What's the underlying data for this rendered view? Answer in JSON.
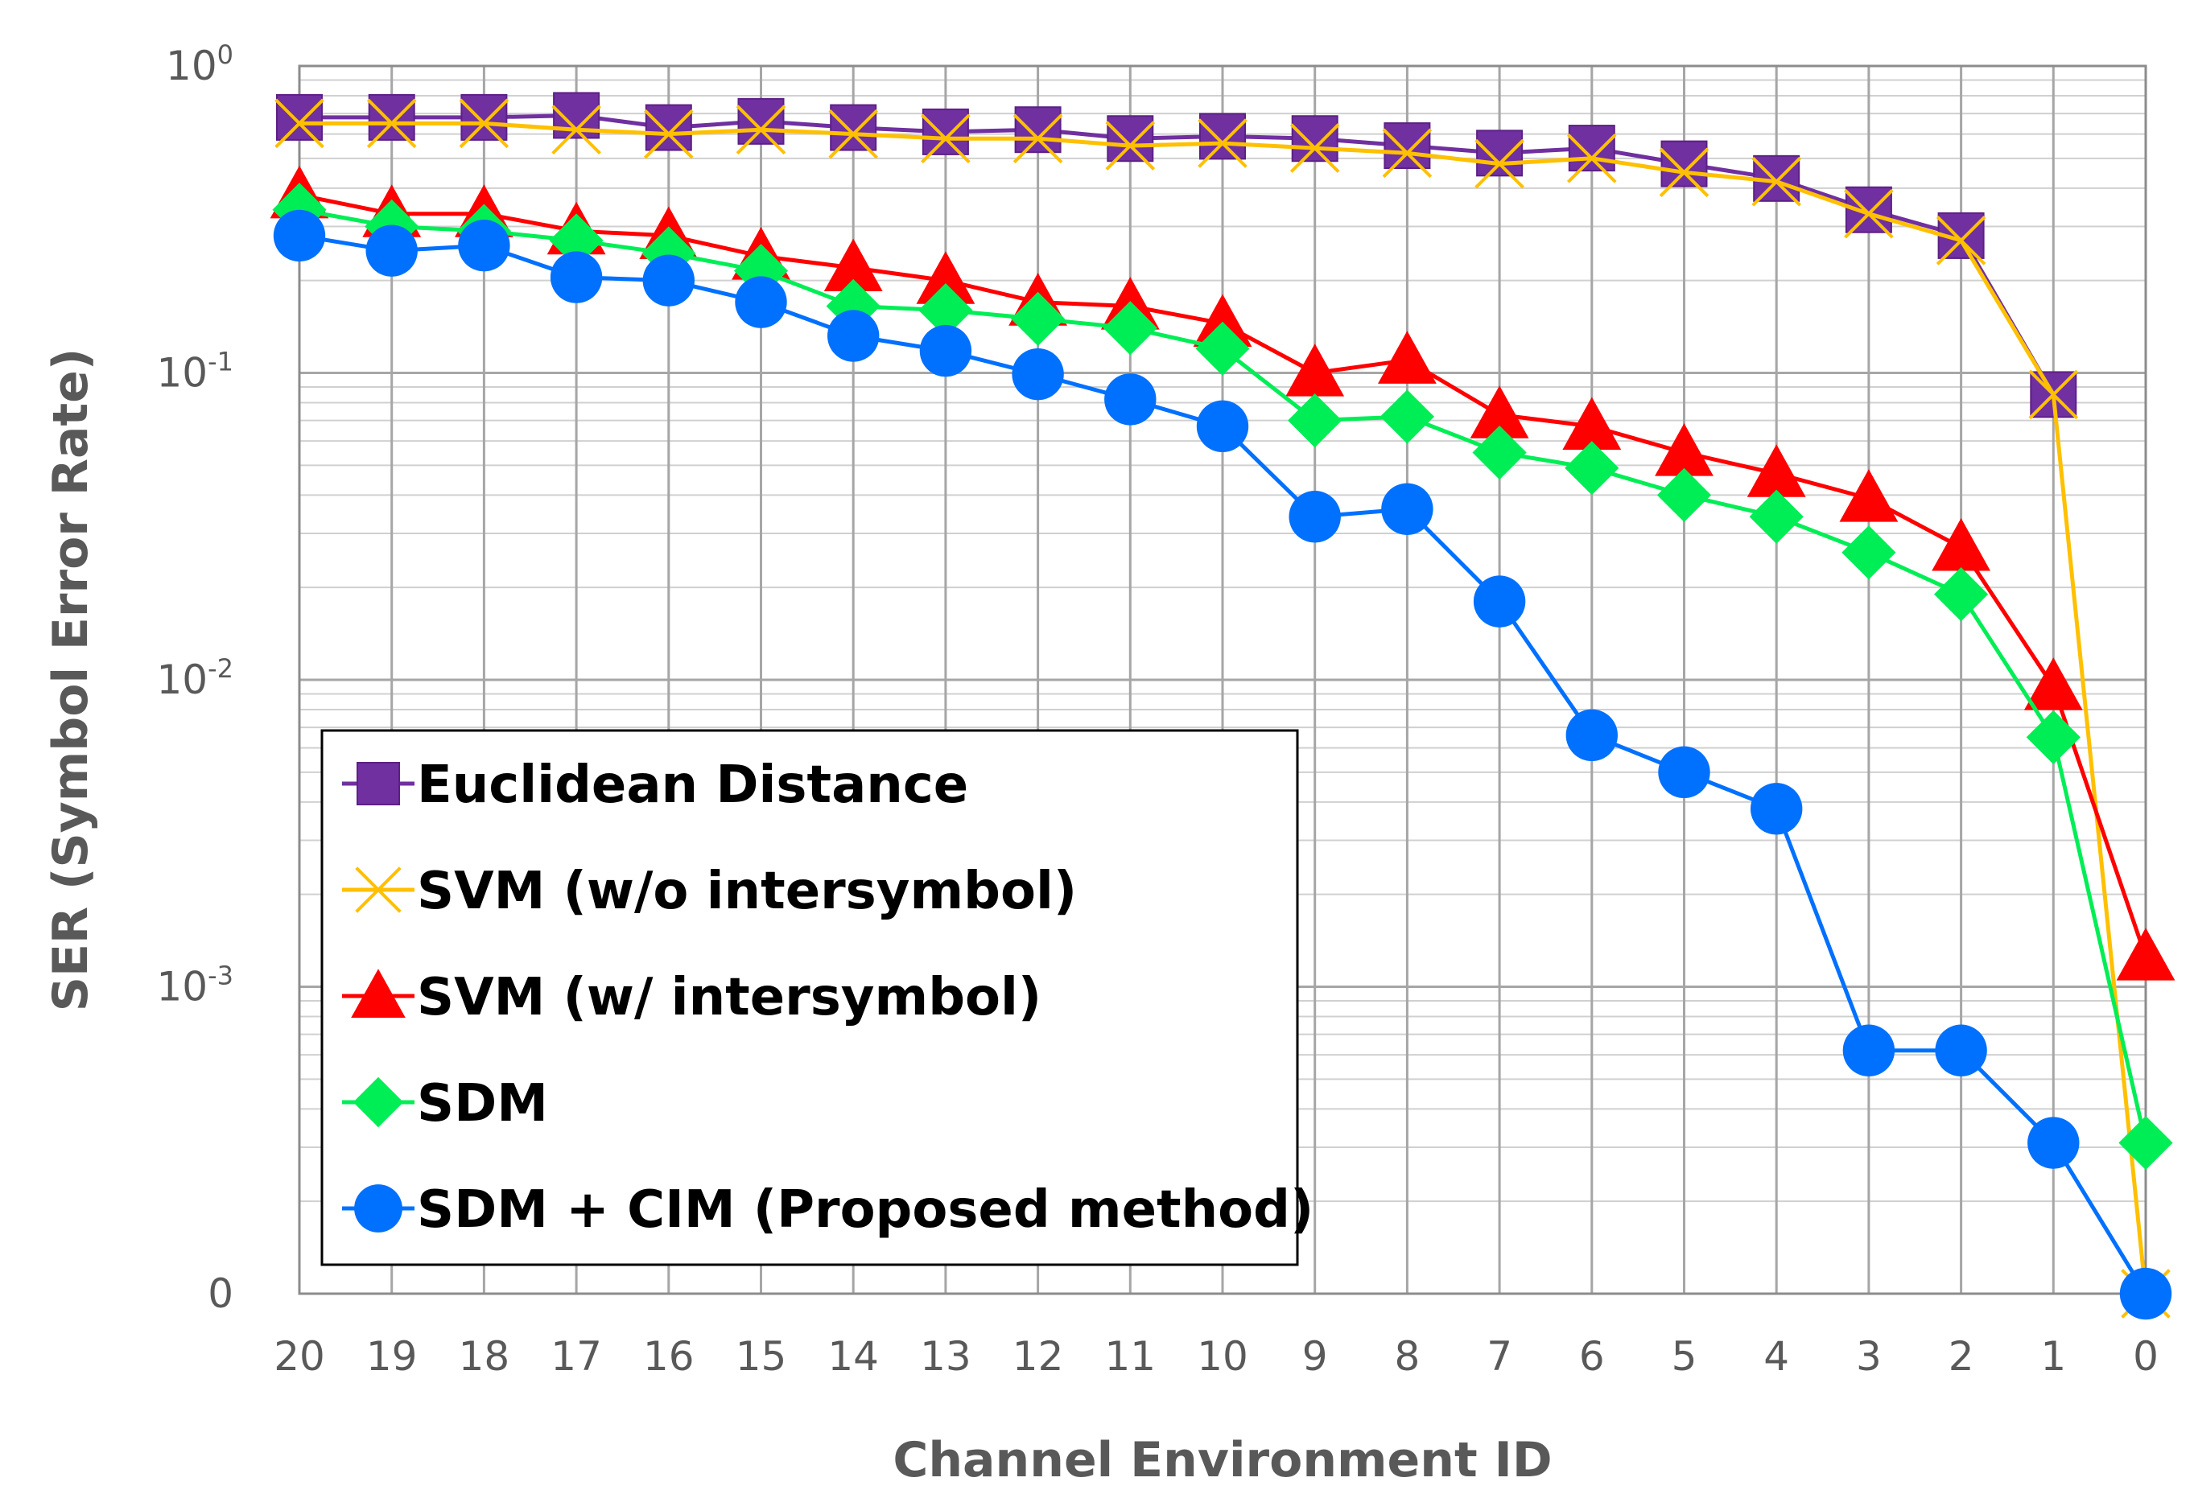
{
  "chart_data": {
    "type": "line",
    "title": "",
    "xlabel": "Channel Environment ID",
    "ylabel": "SER (Symbol Error Rate)",
    "y_scale": "log",
    "ylim": [
      0.0001,
      1
    ],
    "grid": true,
    "legend_position": "bottom-left",
    "categories": [
      "20",
      "19",
      "18",
      "17",
      "16",
      "15",
      "14",
      "13",
      "12",
      "11",
      "10",
      "9",
      "8",
      "7",
      "6",
      "5",
      "4",
      "3",
      "2",
      "1",
      "0"
    ],
    "y_tick_labels": [
      {
        "value": 1,
        "base": "10",
        "exp": "0"
      },
      {
        "value": 0.1,
        "base": "10",
        "exp": "-1"
      },
      {
        "value": 0.01,
        "base": "10",
        "exp": "-2"
      },
      {
        "value": 0.001,
        "base": "10",
        "exp": "-3"
      },
      {
        "value": 0.0001,
        "base": "0",
        "exp": ""
      }
    ],
    "series": [
      {
        "name": "Euclidean Distance",
        "color": "#7030a0",
        "marker": "square",
        "values": [
          0.68,
          0.68,
          0.68,
          0.69,
          0.63,
          0.66,
          0.63,
          0.61,
          0.62,
          0.58,
          0.59,
          0.58,
          0.55,
          0.52,
          0.54,
          0.48,
          0.43,
          0.34,
          0.28,
          0.085,
          null
        ]
      },
      {
        "name": "SVM (w/o intersymbol)",
        "color": "#ffc000",
        "marker": "x",
        "values": [
          0.65,
          0.65,
          0.65,
          0.62,
          0.6,
          0.62,
          0.6,
          0.58,
          0.58,
          0.55,
          0.56,
          0.54,
          0.52,
          0.48,
          0.5,
          0.45,
          0.42,
          0.33,
          0.27,
          0.085,
          0.0001
        ]
      },
      {
        "name": "SVM (w/ intersymbol)",
        "color": "#ff0000",
        "marker": "triangle",
        "values": [
          0.38,
          0.33,
          0.33,
          0.29,
          0.28,
          0.24,
          0.22,
          0.2,
          0.17,
          0.165,
          0.145,
          0.1,
          0.11,
          0.073,
          0.067,
          0.055,
          0.047,
          0.039,
          0.027,
          0.0095,
          0.00125
        ]
      },
      {
        "name": "SDM",
        "color": "#00ee55",
        "marker": "diamond",
        "values": [
          0.34,
          0.3,
          0.29,
          0.27,
          0.245,
          0.215,
          0.165,
          0.16,
          0.15,
          0.14,
          0.12,
          0.07,
          0.072,
          0.055,
          0.049,
          0.04,
          0.034,
          0.026,
          0.019,
          0.0065,
          0.00031
        ]
      },
      {
        "name": "SDM + CIM (Proposed method)",
        "color": "#0070ff",
        "marker": "circle",
        "values": [
          0.28,
          0.25,
          0.26,
          0.205,
          0.2,
          0.17,
          0.132,
          0.118,
          0.099,
          0.082,
          0.067,
          0.034,
          0.036,
          0.018,
          0.0066,
          0.005,
          0.0038,
          0.00062,
          0.00062,
          0.00031,
          0.0001
        ]
      }
    ]
  }
}
